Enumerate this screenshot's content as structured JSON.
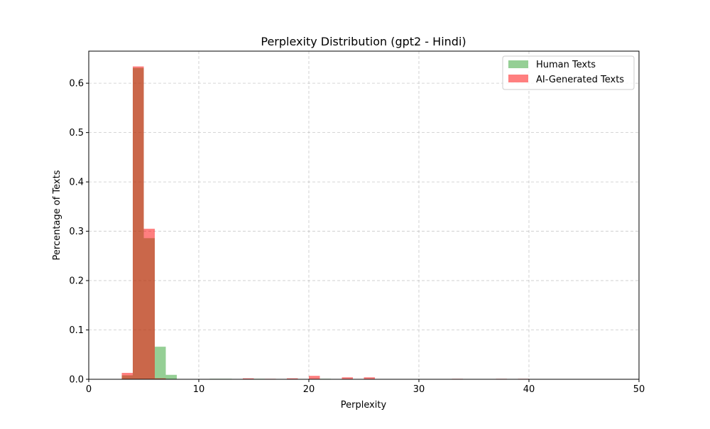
{
  "chart_data": {
    "type": "bar",
    "title": "Perplexity Distribution (gpt2 - Hindi)",
    "xlabel": "Perplexity",
    "ylabel": "Percentage of Texts",
    "xlim": [
      0,
      50
    ],
    "ylim": [
      0,
      0.665
    ],
    "xticks": [
      0,
      10,
      20,
      30,
      40,
      50
    ],
    "xtick_labels": [
      "0",
      "10",
      "20",
      "30",
      "40",
      "50"
    ],
    "yticks": [
      0.0,
      0.1,
      0.2,
      0.3,
      0.4,
      0.5,
      0.6
    ],
    "ytick_labels": [
      "0.0",
      "0.1",
      "0.2",
      "0.3",
      "0.4",
      "0.5",
      "0.6"
    ],
    "grid": true,
    "legend_position": "top-right",
    "bin_width": 1,
    "series": [
      {
        "name": "Human Texts",
        "color": "#2ca02c",
        "bins": [
          {
            "x0": 3,
            "x1": 4,
            "value": 0.008
          },
          {
            "x0": 4,
            "x1": 5,
            "value": 0.631
          },
          {
            "x0": 5,
            "x1": 6,
            "value": 0.286
          },
          {
            "x0": 6,
            "x1": 7,
            "value": 0.066
          },
          {
            "x0": 7,
            "x1": 8,
            "value": 0.009
          },
          {
            "x0": 11,
            "x1": 12,
            "value": 0.001
          },
          {
            "x0": 12,
            "x1": 13,
            "value": 0.001
          },
          {
            "x0": 15,
            "x1": 16,
            "value": 0.001
          },
          {
            "x0": 21,
            "x1": 22,
            "value": 0.001
          }
        ]
      },
      {
        "name": "AI-Generated Texts",
        "color": "#ff0000",
        "bins": [
          {
            "x0": 3,
            "x1": 4,
            "value": 0.013
          },
          {
            "x0": 4,
            "x1": 5,
            "value": 0.634
          },
          {
            "x0": 5,
            "x1": 6,
            "value": 0.305
          },
          {
            "x0": 6,
            "x1": 7,
            "value": 0.002
          },
          {
            "x0": 14,
            "x1": 15,
            "value": 0.002
          },
          {
            "x0": 16,
            "x1": 17,
            "value": 0.001
          },
          {
            "x0": 18,
            "x1": 19,
            "value": 0.002
          },
          {
            "x0": 20,
            "x1": 21,
            "value": 0.007
          },
          {
            "x0": 23,
            "x1": 24,
            "value": 0.004
          },
          {
            "x0": 25,
            "x1": 26,
            "value": 0.004
          },
          {
            "x0": 33,
            "x1": 34,
            "value": 0.001
          },
          {
            "x0": 37,
            "x1": 38,
            "value": 0.001
          },
          {
            "x0": 39,
            "x1": 40,
            "value": 0.001
          }
        ]
      }
    ]
  }
}
